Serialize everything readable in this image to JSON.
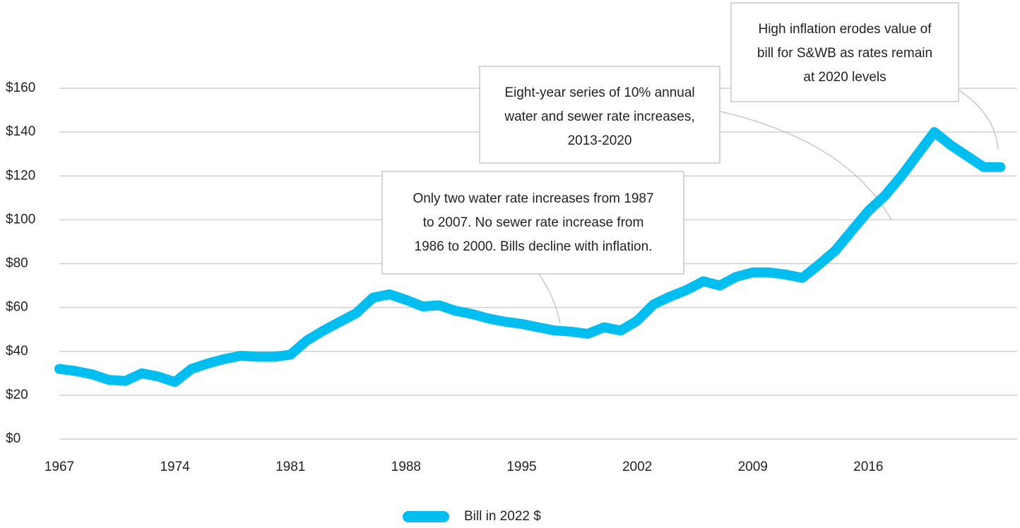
{
  "chart_data": {
    "type": "line",
    "x": [
      1967,
      1968,
      1969,
      1970,
      1971,
      1972,
      1973,
      1974,
      1975,
      1976,
      1977,
      1978,
      1979,
      1980,
      1981,
      1982,
      1983,
      1984,
      1985,
      1986,
      1987,
      1988,
      1989,
      1990,
      1991,
      1992,
      1993,
      1994,
      1995,
      1996,
      1997,
      1998,
      1999,
      2000,
      2001,
      2002,
      2003,
      2004,
      2005,
      2006,
      2007,
      2008,
      2009,
      2010,
      2011,
      2012,
      2013,
      2014,
      2015,
      2016,
      2017,
      2018,
      2019,
      2020,
      2021,
      2022,
      2023,
      2024
    ],
    "series": [
      {
        "name": "Bill in 2022 $",
        "color": "#00bff0",
        "values": [
          32,
          31,
          29.5,
          27,
          26.5,
          30,
          28.5,
          26,
          32,
          34.5,
          36.5,
          38,
          37.5,
          37.5,
          38.5,
          45,
          49.5,
          53.5,
          57.5,
          64.5,
          66,
          63.5,
          60.5,
          61,
          58.5,
          57,
          55,
          53.5,
          52.5,
          51,
          49.5,
          49,
          48,
          51,
          49.5,
          54,
          61.5,
          65,
          68,
          72,
          70,
          74,
          76,
          76,
          75,
          73.5,
          79.5,
          86,
          95,
          104,
          111,
          120,
          130,
          140,
          134,
          129,
          124,
          124
        ]
      }
    ],
    "xlim": [
      1967,
      2024.5
    ],
    "xticks": [
      1967,
      1974,
      1981,
      1988,
      1995,
      2002,
      2009,
      2016
    ],
    "ylim": [
      0,
      160
    ],
    "yticks": [
      {
        "value": 0,
        "label": "$0"
      },
      {
        "value": 20,
        "label": "$20"
      },
      {
        "value": 40,
        "label": "$40"
      },
      {
        "value": 60,
        "label": "$60"
      },
      {
        "value": 80,
        "label": "$80"
      },
      {
        "value": 100,
        "label": "$100"
      },
      {
        "value": 120,
        "label": "$120"
      },
      {
        "value": 140,
        "label": "$140"
      },
      {
        "value": 160,
        "label": "$160"
      }
    ],
    "grid": true,
    "annotations": [
      {
        "lines": [
          "Only two water rate increases from 1987",
          "to 2007. No sewer rate increase from",
          "1986 to 2000. Bills decline with inflation."
        ]
      },
      {
        "lines": [
          "Eight-year series of 10% annual",
          "water and sewer rate increases,",
          "2013-2020"
        ]
      },
      {
        "lines": [
          "High inflation erodes value of",
          "bill for S&WB as rates remain",
          "at 2020 levels"
        ]
      }
    ]
  }
}
